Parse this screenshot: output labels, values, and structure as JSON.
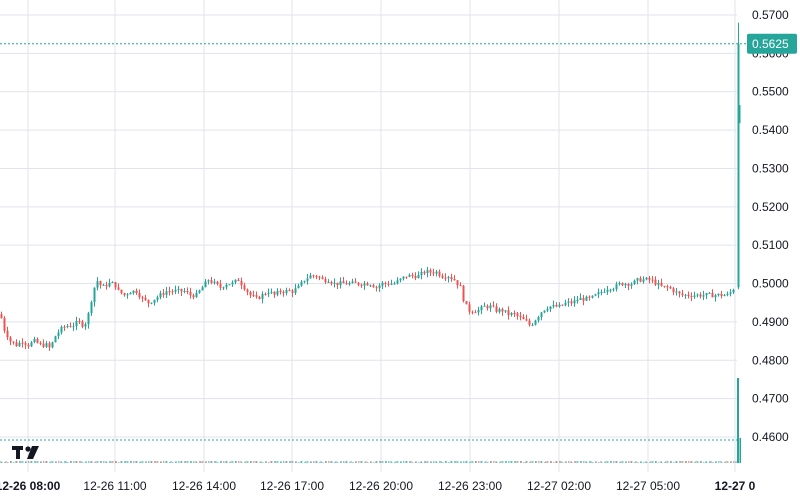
{
  "chart_data": {
    "type": "candlestick",
    "title": "",
    "ylim": [
      0.453,
      0.573
    ],
    "y_ticks": [
      "0.5700",
      "0.5600",
      "0.5500",
      "0.5400",
      "0.5300",
      "0.5200",
      "0.5100",
      "0.5000",
      "0.4900",
      "0.4800",
      "0.4700",
      "0.4600"
    ],
    "x_ticks": [
      {
        "label": "12-26 08:00",
        "bold": true
      },
      {
        "label": "12-26 11:00",
        "bold": false
      },
      {
        "label": "12-26 14:00",
        "bold": false
      },
      {
        "label": "12-26 17:00",
        "bold": false
      },
      {
        "label": "12-26 20:00",
        "bold": false
      },
      {
        "label": "12-26 23:00",
        "bold": false
      },
      {
        "label": "12-27 02:00",
        "bold": false
      },
      {
        "label": "12-27 05:00",
        "bold": false
      },
      {
        "label": "12-27 0",
        "bold": true
      }
    ],
    "current_price": "0.5625",
    "current_price_value": 0.5625,
    "secondary_line_value": 0.4595,
    "grid": true,
    "colors": {
      "up": "#26a69a",
      "down": "#ef5350",
      "grid": "#e0e3eb",
      "price_line": "#26a69a",
      "volume": "#26a69a"
    },
    "close_path": [
      [
        0,
        0.492
      ],
      [
        4,
        0.488
      ],
      [
        10,
        0.485
      ],
      [
        16,
        0.484
      ],
      [
        22,
        0.485
      ],
      [
        28,
        0.484
      ],
      [
        34,
        0.485
      ],
      [
        40,
        0.484
      ],
      [
        46,
        0.484
      ],
      [
        50,
        0.483
      ],
      [
        54,
        0.486
      ],
      [
        60,
        0.488
      ],
      [
        66,
        0.489
      ],
      [
        72,
        0.489
      ],
      [
        78,
        0.49
      ],
      [
        84,
        0.489
      ],
      [
        88,
        0.492
      ],
      [
        92,
        0.497
      ],
      [
        96,
        0.501
      ],
      [
        102,
        0.499
      ],
      [
        108,
        0.5
      ],
      [
        114,
        0.5
      ],
      [
        118,
        0.498
      ],
      [
        124,
        0.497
      ],
      [
        130,
        0.498
      ],
      [
        136,
        0.498
      ],
      [
        142,
        0.496
      ],
      [
        148,
        0.495
      ],
      [
        154,
        0.496
      ],
      [
        160,
        0.497
      ],
      [
        166,
        0.498
      ],
      [
        172,
        0.498
      ],
      [
        178,
        0.498
      ],
      [
        184,
        0.498
      ],
      [
        190,
        0.497
      ],
      [
        196,
        0.497
      ],
      [
        202,
        0.499
      ],
      [
        208,
        0.501
      ],
      [
        214,
        0.5
      ],
      [
        220,
        0.499
      ],
      [
        226,
        0.5
      ],
      [
        232,
        0.5
      ],
      [
        238,
        0.501
      ],
      [
        244,
        0.499
      ],
      [
        250,
        0.497
      ],
      [
        256,
        0.496
      ],
      [
        262,
        0.497
      ],
      [
        268,
        0.498
      ],
      [
        274,
        0.497
      ],
      [
        280,
        0.498
      ],
      [
        286,
        0.498
      ],
      [
        292,
        0.498
      ],
      [
        298,
        0.499
      ],
      [
        304,
        0.501
      ],
      [
        310,
        0.502
      ],
      [
        316,
        0.502
      ],
      [
        322,
        0.501
      ],
      [
        328,
        0.501
      ],
      [
        334,
        0.5
      ],
      [
        340,
        0.5
      ],
      [
        346,
        0.5
      ],
      [
        352,
        0.5
      ],
      [
        358,
        0.5
      ],
      [
        364,
        0.5
      ],
      [
        370,
        0.5
      ],
      [
        376,
        0.499
      ],
      [
        382,
        0.5
      ],
      [
        388,
        0.5
      ],
      [
        394,
        0.5
      ],
      [
        400,
        0.501
      ],
      [
        406,
        0.502
      ],
      [
        412,
        0.502
      ],
      [
        418,
        0.502
      ],
      [
        424,
        0.503
      ],
      [
        430,
        0.503
      ],
      [
        436,
        0.503
      ],
      [
        442,
        0.502
      ],
      [
        448,
        0.502
      ],
      [
        454,
        0.501
      ],
      [
        460,
        0.499
      ],
      [
        464,
        0.495
      ],
      [
        468,
        0.493
      ],
      [
        472,
        0.493
      ],
      [
        478,
        0.493
      ],
      [
        484,
        0.494
      ],
      [
        490,
        0.494
      ],
      [
        496,
        0.493
      ],
      [
        502,
        0.493
      ],
      [
        508,
        0.492
      ],
      [
        514,
        0.492
      ],
      [
        520,
        0.491
      ],
      [
        526,
        0.49
      ],
      [
        530,
        0.489
      ],
      [
        536,
        0.491
      ],
      [
        542,
        0.493
      ],
      [
        548,
        0.494
      ],
      [
        554,
        0.494
      ],
      [
        560,
        0.494
      ],
      [
        566,
        0.495
      ],
      [
        572,
        0.495
      ],
      [
        578,
        0.496
      ],
      [
        584,
        0.496
      ],
      [
        590,
        0.496
      ],
      [
        596,
        0.497
      ],
      [
        602,
        0.498
      ],
      [
        608,
        0.499
      ],
      [
        614,
        0.499
      ],
      [
        620,
        0.5
      ],
      [
        626,
        0.5
      ],
      [
        632,
        0.5
      ],
      [
        638,
        0.501
      ],
      [
        644,
        0.501
      ],
      [
        650,
        0.501
      ],
      [
        656,
        0.5
      ],
      [
        662,
        0.499
      ],
      [
        668,
        0.499
      ],
      [
        674,
        0.498
      ],
      [
        680,
        0.497
      ],
      [
        686,
        0.497
      ],
      [
        692,
        0.497
      ],
      [
        698,
        0.497
      ],
      [
        704,
        0.497
      ],
      [
        710,
        0.497
      ],
      [
        716,
        0.497
      ],
      [
        722,
        0.497
      ],
      [
        728,
        0.497
      ],
      [
        734,
        0.499
      ],
      [
        737,
        0.552
      ],
      [
        740,
        0.5625
      ]
    ]
  },
  "branding": {
    "logo_text": "TV"
  }
}
